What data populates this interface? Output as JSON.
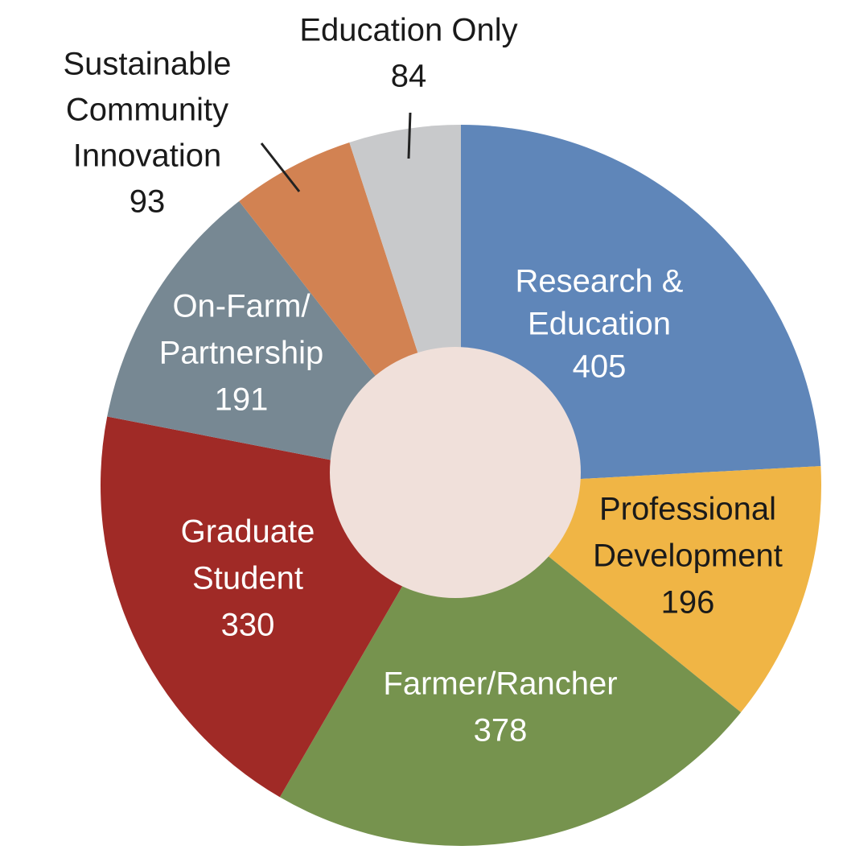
{
  "chart_data": {
    "type": "donut",
    "categories": [
      [
        "Research &",
        "Education"
      ],
      [
        "Professional",
        "Development"
      ],
      [
        "Farmer/Rancher"
      ],
      [
        "Graduate",
        "Student"
      ],
      [
        "On-Farm/",
        "Partnership"
      ],
      [
        "Sustainable",
        "Community",
        "Innovation"
      ],
      [
        "Education Only"
      ]
    ],
    "values": [
      405,
      196,
      378,
      330,
      191,
      93,
      84
    ],
    "colors": [
      "#5f86b9",
      "#f0b545",
      "#76934e",
      "#a02a26",
      "#778893",
      "#d28252",
      "#c8c9cb"
    ]
  }
}
